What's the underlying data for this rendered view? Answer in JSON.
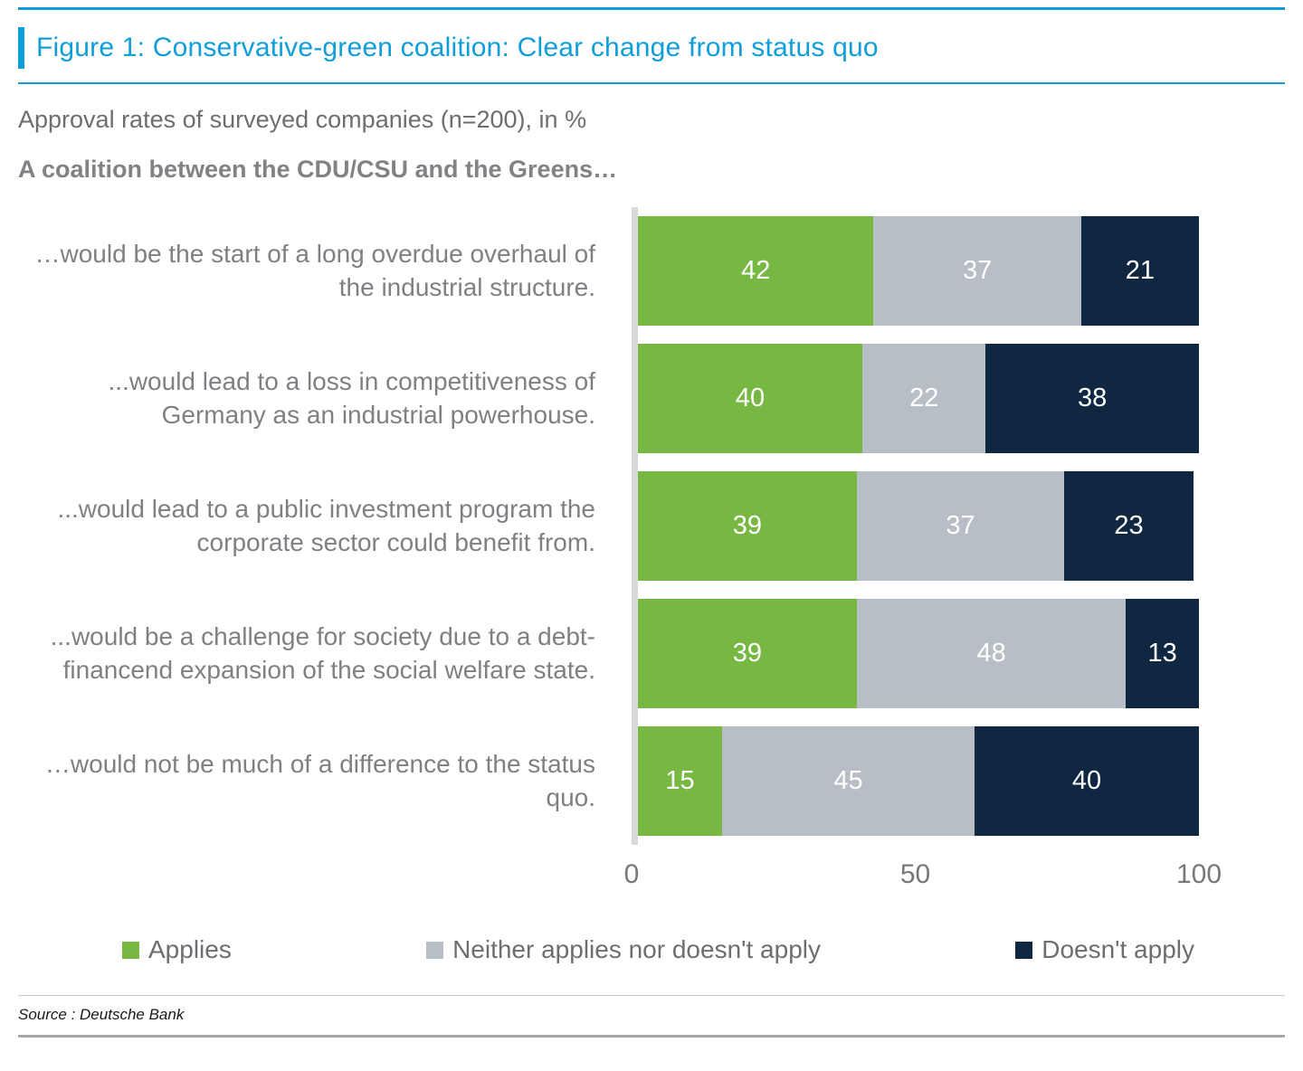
{
  "figure": {
    "title": "Figure 1: Conservative-green coalition: Clear change from status quo",
    "subtitle": "Approval rates of surveyed companies (n=200), in %",
    "lead": "A coalition between the CDU/CSU and the Greens…",
    "source": "Source : Deutsche Bank"
  },
  "colors": {
    "accent_blue": "#0f9ed8",
    "axis_line": "#d9d9d9",
    "label_gray": "#7f8084",
    "series": [
      "#77b843",
      "#b7bec5",
      "#102742"
    ]
  },
  "chart_data": {
    "type": "bar",
    "orientation": "horizontal",
    "stacked": true,
    "title": "Figure 1: Conservative-green coalition: Clear change from status quo",
    "subtitle": "Approval rates of surveyed companies (n=200), in %",
    "categories": [
      "…would be the start of a long overdue overhaul of the industrial structure.",
      "...would lead to a loss in competitiveness of Germany as an industrial powerhouse.",
      "...would lead to a public investment program the corporate sector could benefit from.",
      "...would be a challenge for society due to a debt-financend expansion of the social welfare state.",
      "…would not be much of a difference to the status quo."
    ],
    "series": [
      {
        "name": "Applies",
        "values": [
          42,
          40,
          39,
          39,
          15
        ]
      },
      {
        "name": "Neither applies nor doesn't apply",
        "values": [
          37,
          22,
          37,
          48,
          45
        ]
      },
      {
        "name": "Doesn't apply",
        "values": [
          21,
          38,
          23,
          13,
          40
        ]
      }
    ],
    "xlim": [
      0,
      100
    ],
    "xticks": [
      0,
      50,
      100
    ],
    "xlabel": "",
    "ylabel": "",
    "grid": false,
    "legend_position": "bottom",
    "value_labels": "inside-white"
  }
}
